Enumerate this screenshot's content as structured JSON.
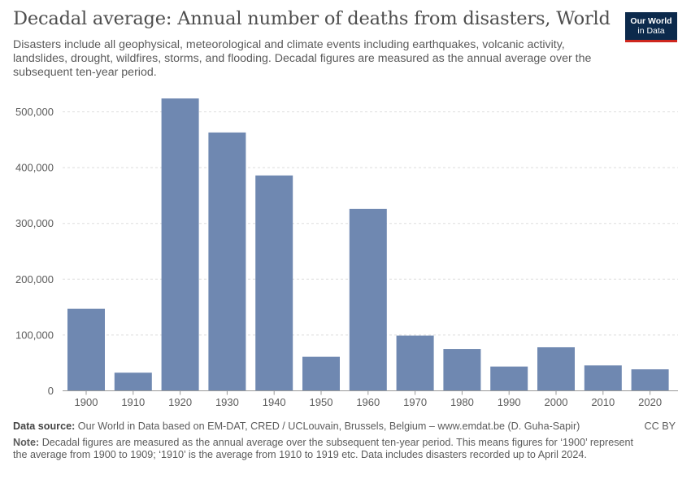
{
  "title": "Decadal average: Annual number of deaths from disasters, World",
  "subtitle": "Disasters include all geophysical, meteorological and climate events including earthquakes, volcanic activity, landslides, drought, wildfires, storms, and flooding. Decadal figures are measured as the annual average over the subsequent ten-year period.",
  "logo": {
    "line1": "Our World",
    "line2": "in Data"
  },
  "footer": {
    "source_label": "Data source:",
    "source_text": "Our World in Data based on EM-DAT, CRED / UCLouvain, Brussels, Belgium – www.emdat.be (D. Guha-Sapir)",
    "license": "CC BY",
    "note_label": "Note:",
    "note_text": "Decadal figures are measured as the annual average over the subsequent ten-year period. This means figures for ‘1900’ represent the average from 1900 to 1909; ‘1910’ is the average from 1910 to 1919 etc. Data includes disasters recorded up to April 2024."
  },
  "colors": {
    "bar": "#6f88b1",
    "grid": "#dddddd",
    "axis": "#999999"
  },
  "chart_data": {
    "type": "bar",
    "categories": [
      "1900",
      "1910",
      "1920",
      "1930",
      "1940",
      "1950",
      "1960",
      "1970",
      "1980",
      "1990",
      "2000",
      "2010",
      "2020"
    ],
    "values": [
      147000,
      32500,
      524000,
      463000,
      386000,
      61000,
      326000,
      99000,
      75000,
      43500,
      78000,
      45500,
      38500
    ],
    "title": "Decadal average: Annual number of deaths from disasters, World",
    "xlabel": "",
    "ylabel": "",
    "ylim": [
      0,
      500000
    ],
    "yticks": [
      "0",
      "100,000",
      "200,000",
      "300,000",
      "400,000",
      "500,000"
    ],
    "ytick_values": [
      0,
      100000,
      200000,
      300000,
      400000,
      500000
    ],
    "grid": true
  }
}
